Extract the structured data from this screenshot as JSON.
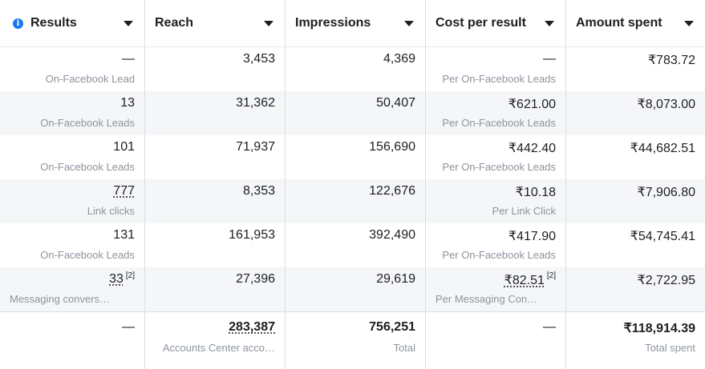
{
  "headers": [
    {
      "label": "Results",
      "has_info": true
    },
    {
      "label": "Reach"
    },
    {
      "label": "Impressions"
    },
    {
      "label": "Cost per result"
    },
    {
      "label": "Amount spent"
    }
  ],
  "info_glyph": "i",
  "rows": [
    {
      "results": "—",
      "results_sub": "On-Facebook Lead",
      "reach": "3,453",
      "impressions": "4,369",
      "cost": "—",
      "cost_sub": "Per On-Facebook Leads",
      "spent": "₹783.72"
    },
    {
      "results": "13",
      "results_sub": "On-Facebook Leads",
      "reach": "31,362",
      "impressions": "50,407",
      "cost": "₹621.00",
      "cost_sub": "Per On-Facebook Leads",
      "spent": "₹8,073.00"
    },
    {
      "results": "101",
      "results_sub": "On-Facebook Leads",
      "reach": "71,937",
      "impressions": "156,690",
      "cost": "₹442.40",
      "cost_sub": "Per On-Facebook Leads",
      "spent": "₹44,682.51"
    },
    {
      "results": "777",
      "results_sub": "Link clicks",
      "reach": "8,353",
      "impressions": "122,676",
      "cost": "₹10.18",
      "cost_sub": "Per Link Click",
      "spent": "₹7,906.80"
    },
    {
      "results": "131",
      "results_sub": "On-Facebook Leads",
      "reach": "161,953",
      "impressions": "392,490",
      "cost": "₹417.90",
      "cost_sub": "Per On-Facebook Leads",
      "spent": "₹54,745.41"
    },
    {
      "results": "33",
      "results_fn": "[2]",
      "results_sub": "Messaging convers…",
      "reach": "27,396",
      "impressions": "29,619",
      "cost": "₹82.51",
      "cost_fn": "[2]",
      "cost_sub": "Per Messaging Con…",
      "spent": "₹2,722.95"
    }
  ],
  "totals": {
    "results": "—",
    "reach": "283,387",
    "reach_sub": "Accounts Center acco…",
    "impressions": "756,251",
    "impressions_sub": "Total",
    "cost": "—",
    "spent": "₹118,914.39",
    "spent_sub": "Total spent"
  },
  "colors": {
    "info_blue": "#1877f2",
    "muted_text": "#8d949e",
    "alt_row": "#f5f6f7"
  }
}
